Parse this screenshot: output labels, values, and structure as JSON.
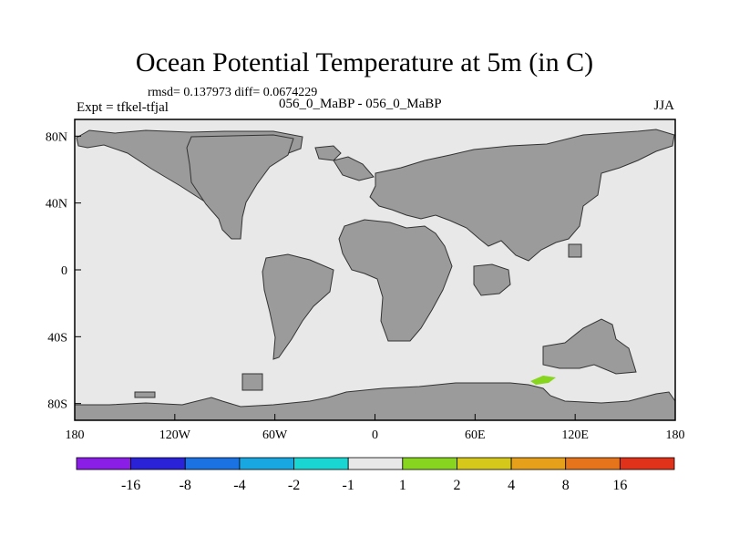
{
  "title": "Ocean Potential Temperature at 5m (in C)",
  "stats": "rmsd= 0.137973  diff= 0.0674229",
  "expt": "Expt = tfkel-tfjal",
  "case_label": "056_0_MaBP - 056_0_MaBP",
  "season": "JJA",
  "colors": {
    "ocean": "#e8e8e8",
    "land": "#9b9b9b",
    "anomaly_patch": "#88d51f"
  },
  "lon_ticks": [
    "180",
    "120W",
    "60W",
    "0",
    "60E",
    "120E",
    "180"
  ],
  "lat_ticks": [
    "80N",
    "40N",
    "0",
    "40S",
    "80S"
  ],
  "colorbar": {
    "colors": [
      "#8a1ee6",
      "#2a22d6",
      "#1a72e3",
      "#18a7e0",
      "#1ad6d2",
      "#e8e8e8",
      "#88d51f",
      "#d6c81b",
      "#e6a01a",
      "#e6741a",
      "#e0321a"
    ],
    "labels": [
      "-16",
      "-8",
      "-4",
      "-2",
      "-1",
      "1",
      "2",
      "4",
      "8",
      "16"
    ]
  },
  "chart_data": {
    "type": "heatmap",
    "projection": "cylindrical equidistant",
    "lon_range": [
      -180,
      180
    ],
    "lat_range": [
      -90,
      90
    ],
    "contour_levels": [
      -16,
      -8,
      -4,
      -2,
      -1,
      1,
      2,
      4,
      8,
      16
    ],
    "anomalies": [
      {
        "region": "south of Australia",
        "lon": 100,
        "lat": -66,
        "level_bin": "1 to 2"
      }
    ]
  }
}
